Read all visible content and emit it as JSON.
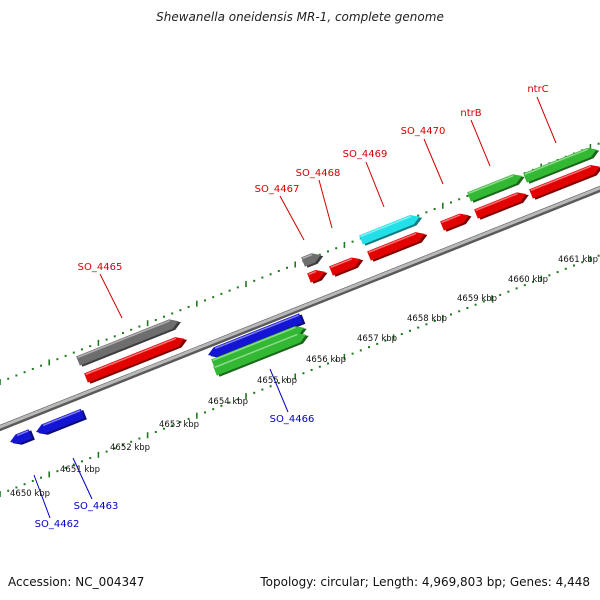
{
  "title": "Shewanella oneidensis MR-1, complete genome",
  "footer": {
    "accession": "Accession: NC_004347",
    "summary": "Topology: circular; Length: 4,969,803 bp; Genes: 4,448"
  },
  "colors": {
    "backbone": "#8a8a8a",
    "tick": "#1f7a1f",
    "forward_label": "#d40000",
    "reverse_label": "#0000c8",
    "red": "#e20000",
    "blue": "#1414d4",
    "green": "#33b833",
    "gray": "#6e6e6e",
    "cyan": "#22e0e8"
  },
  "scale_labels": [
    {
      "kbp": 4650,
      "label": "4650 kbp"
    },
    {
      "kbp": 4651,
      "label": "4651 kbp"
    },
    {
      "kbp": 4652,
      "label": "4652 kbp"
    },
    {
      "kbp": 4653,
      "label": "4653 kbp"
    },
    {
      "kbp": 4654,
      "label": "4654 kbp"
    },
    {
      "kbp": 4655,
      "label": "4655 kbp"
    },
    {
      "kbp": 4656,
      "label": "4656 kbp"
    },
    {
      "kbp": 4657,
      "label": "4657 kbp"
    },
    {
      "kbp": 4658,
      "label": "4658 kbp"
    },
    {
      "kbp": 4659,
      "label": "4659 kbp"
    },
    {
      "kbp": 4660,
      "label": "4660 kbp"
    },
    {
      "kbp": 4661,
      "label": "4661 kbp"
    }
  ],
  "gene_labels": [
    {
      "name": "SO_4462",
      "strand": "reverse"
    },
    {
      "name": "SO_4463",
      "strand": "reverse"
    },
    {
      "name": "SO_4465",
      "strand": "forward"
    },
    {
      "name": "SO_4466",
      "strand": "reverse"
    },
    {
      "name": "SO_4467",
      "strand": "forward"
    },
    {
      "name": "SO_4468",
      "strand": "forward"
    },
    {
      "name": "SO_4469",
      "strand": "forward"
    },
    {
      "name": "SO_4470",
      "strand": "forward"
    },
    {
      "name": "ntrB",
      "strand": "forward"
    },
    {
      "name": "ntrC",
      "strand": "forward"
    }
  ],
  "features": [
    {
      "id": "SO_4462",
      "strand": "reverse",
      "color": "blue"
    },
    {
      "id": "SO_4463",
      "strand": "reverse",
      "color": "blue"
    },
    {
      "id": "SO_4465-cds",
      "strand": "forward",
      "color": "red"
    },
    {
      "id": "SO_4465-gene",
      "strand": "forward",
      "color": "gray"
    },
    {
      "id": "SO_4466-blue",
      "strand": "reverse",
      "color": "blue"
    },
    {
      "id": "SO_4466-green-top",
      "strand": "reverse",
      "color": "green"
    },
    {
      "id": "SO_4466-green-bottom",
      "strand": "reverse",
      "color": "green"
    },
    {
      "id": "SO_4467-cds",
      "strand": "forward",
      "color": "red"
    },
    {
      "id": "SO_4467-gene",
      "strand": "forward",
      "color": "gray"
    },
    {
      "id": "SO_4468",
      "strand": "forward",
      "color": "red"
    },
    {
      "id": "SO_4469-cds",
      "strand": "forward",
      "color": "red"
    },
    {
      "id": "SO_4469-gene",
      "strand": "forward",
      "color": "cyan"
    },
    {
      "id": "SO_4470",
      "strand": "forward",
      "color": "red"
    },
    {
      "id": "ntrB-cds",
      "strand": "forward",
      "color": "red"
    },
    {
      "id": "ntrB-gene",
      "strand": "forward",
      "color": "green"
    },
    {
      "id": "ntrC-cds",
      "strand": "forward",
      "color": "red"
    },
    {
      "id": "ntrC-gene",
      "strand": "forward",
      "color": "green"
    }
  ]
}
